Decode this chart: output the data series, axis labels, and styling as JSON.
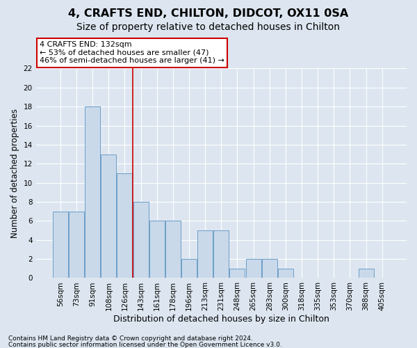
{
  "title1": "4, CRAFTS END, CHILTON, DIDCOT, OX11 0SA",
  "title2": "Size of property relative to detached houses in Chilton",
  "xlabel": "Distribution of detached houses by size in Chilton",
  "ylabel": "Number of detached properties",
  "categories": [
    "56sqm",
    "73sqm",
    "91sqm",
    "108sqm",
    "126sqm",
    "143sqm",
    "161sqm",
    "178sqm",
    "196sqm",
    "213sqm",
    "231sqm",
    "248sqm",
    "265sqm",
    "283sqm",
    "300sqm",
    "318sqm",
    "335sqm",
    "353sqm",
    "370sqm",
    "388sqm",
    "405sqm"
  ],
  "values": [
    7,
    7,
    18,
    13,
    11,
    8,
    6,
    6,
    2,
    5,
    5,
    1,
    2,
    2,
    1,
    0,
    0,
    0,
    0,
    1,
    0
  ],
  "bar_color": "#c9d9ea",
  "bar_edge_color": "#6b9ec8",
  "vline_index": 4,
  "annotation_text": "4 CRAFTS END: 132sqm\n← 53% of detached houses are smaller (47)\n46% of semi-detached houses are larger (41) →",
  "annotation_box_color": "white",
  "annotation_box_edge_color": "#cc0000",
  "vline_color": "#cc0000",
  "ylim": [
    0,
    22
  ],
  "yticks": [
    0,
    2,
    4,
    6,
    8,
    10,
    12,
    14,
    16,
    18,
    20,
    22
  ],
  "background_color": "#dde6f0",
  "grid_color": "white",
  "footer1": "Contains HM Land Registry data © Crown copyright and database right 2024.",
  "footer2": "Contains public sector information licensed under the Open Government Licence v3.0.",
  "title1_fontsize": 11.5,
  "title2_fontsize": 10,
  "tick_fontsize": 7.5,
  "xlabel_fontsize": 9,
  "ylabel_fontsize": 8.5,
  "footer_fontsize": 6.5,
  "annot_fontsize": 8
}
